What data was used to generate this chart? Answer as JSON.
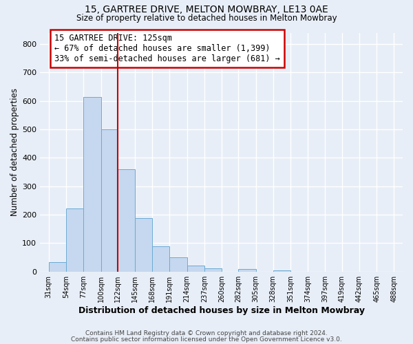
{
  "title1": "15, GARTREE DRIVE, MELTON MOWBRAY, LE13 0AE",
  "title2": "Size of property relative to detached houses in Melton Mowbray",
  "bar_values": [
    33,
    222,
    614,
    500,
    360,
    188,
    88,
    50,
    22,
    12,
    0,
    10,
    0,
    5,
    0,
    0,
    0,
    0,
    0,
    0
  ],
  "bin_edges": [
    31,
    54,
    77,
    100,
    122,
    145,
    168,
    191,
    214,
    237,
    260,
    282,
    305,
    328,
    351,
    374,
    397,
    419,
    442,
    465,
    488
  ],
  "bin_labels": [
    "31sqm",
    "54sqm",
    "77sqm",
    "100sqm",
    "122sqm",
    "145sqm",
    "168sqm",
    "191sqm",
    "214sqm",
    "237sqm",
    "260sqm",
    "282sqm",
    "305sqm",
    "328sqm",
    "351sqm",
    "374sqm",
    "397sqm",
    "419sqm",
    "442sqm",
    "465sqm",
    "488sqm"
  ],
  "bar_color": "#c5d8ef",
  "bar_edgecolor": "#6aaad4",
  "vline_x": 122,
  "vline_color": "#cc0000",
  "ylabel": "Number of detached properties",
  "xlabel": "Distribution of detached houses by size in Melton Mowbray",
  "ylim": [
    0,
    840
  ],
  "yticks": [
    0,
    100,
    200,
    300,
    400,
    500,
    600,
    700,
    800
  ],
  "annotation_title": "15 GARTREE DRIVE: 125sqm",
  "annotation_line1": "← 67% of detached houses are smaller (1,399)",
  "annotation_line2": "33% of semi-detached houses are larger (681) →",
  "annotation_box_color": "#cc0000",
  "footer1": "Contains HM Land Registry data © Crown copyright and database right 2024.",
  "footer2": "Contains public sector information licensed under the Open Government Licence v3.0.",
  "bg_color": "#e8eef7",
  "plot_bg_color": "#e8eef7",
  "grid_color": "#ffffff",
  "figsize": [
    6.0,
    5.0
  ],
  "dpi": 100
}
